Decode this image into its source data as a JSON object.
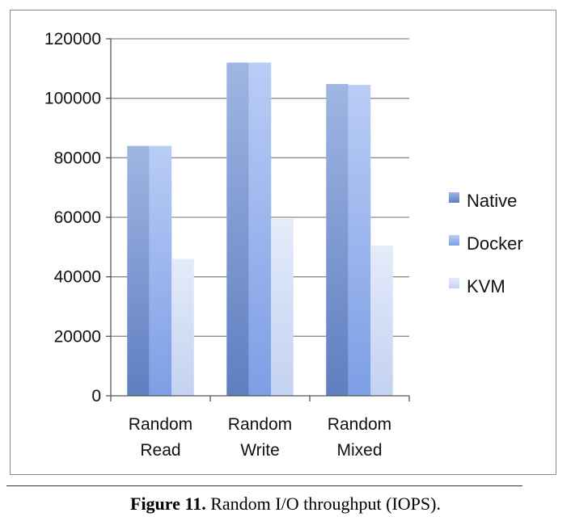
{
  "chart_data": {
    "type": "bar",
    "categories": [
      [
        "Random",
        "Read"
      ],
      [
        "Random",
        "Write"
      ],
      [
        "Random",
        "Mixed"
      ]
    ],
    "series": [
      {
        "name": "Native",
        "values": [
          84000,
          112000,
          104800
        ]
      },
      {
        "name": "Docker",
        "values": [
          84000,
          112000,
          104500
        ]
      },
      {
        "name": "KVM",
        "values": [
          46000,
          59500,
          50500
        ]
      }
    ],
    "ylim": [
      0,
      120000
    ],
    "yticks": [
      0,
      20000,
      40000,
      60000,
      80000,
      100000,
      120000
    ],
    "grid": true,
    "legend": "right",
    "colors": {
      "Native": [
        "#5f7ec0",
        "#9fb6e3"
      ],
      "Docker": [
        "#7d9ee6",
        "#b9cdf5"
      ],
      "KVM": [
        "#c3d2f1",
        "#e4ebfa"
      ]
    }
  },
  "caption": {
    "label": "Figure 11.",
    "text": "Random I/O throughput (IOPS)."
  }
}
